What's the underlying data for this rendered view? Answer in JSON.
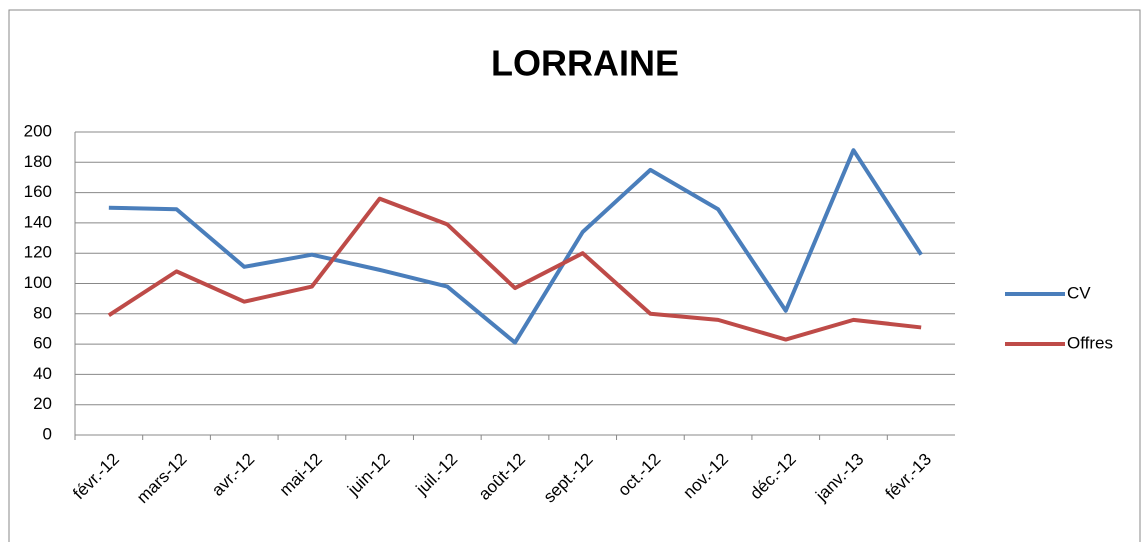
{
  "chart_data": {
    "type": "line",
    "title": "LORRAINE",
    "categories": [
      "févr.-12",
      "mars-12",
      "avr.-12",
      "mai-12",
      "juin-12",
      "juil.-12",
      "août-12",
      "sept.-12",
      "oct.-12",
      "nov.-12",
      "déc.-12",
      "janv.-13",
      "févr.-13"
    ],
    "series": [
      {
        "name": "CV",
        "color": "#4a7ebb",
        "values": [
          150,
          149,
          111,
          119,
          109,
          98,
          61,
          134,
          175,
          149,
          82,
          188,
          119
        ]
      },
      {
        "name": "Offres",
        "color": "#be4b48",
        "values": [
          79,
          108,
          88,
          98,
          156,
          139,
          97,
          120,
          80,
          76,
          63,
          76,
          71
        ]
      }
    ],
    "ylim": [
      0,
      200
    ],
    "yticks": [
      0,
      20,
      40,
      60,
      80,
      100,
      120,
      140,
      160,
      180,
      200
    ],
    "grid": true,
    "legend": "right"
  }
}
